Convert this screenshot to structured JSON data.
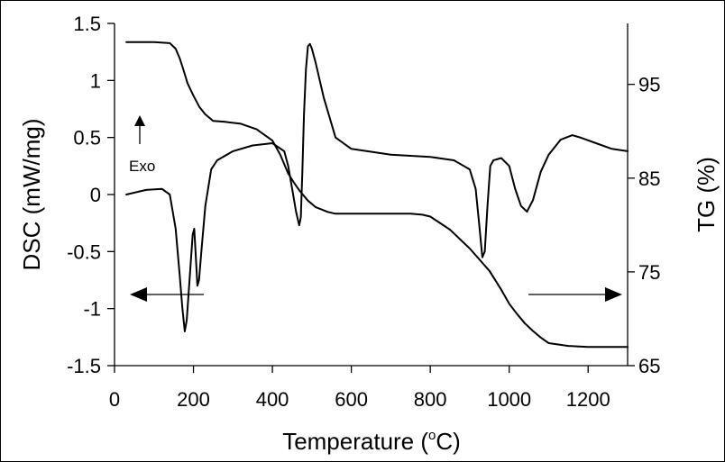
{
  "chart_data": {
    "type": "line",
    "title": "",
    "xlabel": {
      "prefix": "Temperature (",
      "sup": "o",
      "suffix": "C)"
    },
    "ylabel_left": "DSC (mW/mg)",
    "ylabel_right": "TG (%)",
    "xlim": [
      0,
      1300
    ],
    "ylim_left": [
      -1.5,
      1.5
    ],
    "ylim_right": [
      65,
      101.5
    ],
    "x_ticks": [
      0,
      200,
      400,
      600,
      800,
      1000,
      1200
    ],
    "y_left_ticks": [
      1.5,
      1,
      0.5,
      0,
      -0.5,
      -1,
      -1.5
    ],
    "y_right_ticks": [
      95,
      85,
      75,
      65
    ],
    "grid": false,
    "annotation": "Exo",
    "series": [
      {
        "axis": "left",
        "color": "#000000",
        "x": [
          30,
          80,
          120,
          140,
          155,
          165,
          172,
          178,
          183,
          188,
          193,
          198,
          202,
          206,
          210,
          214,
          220,
          230,
          245,
          260,
          300,
          350,
          400,
          430,
          440,
          450,
          460,
          468,
          472,
          476,
          480,
          485,
          490,
          495,
          500,
          510,
          530,
          560,
          600,
          700,
          800,
          860,
          900,
          915,
          925,
          932,
          938,
          945,
          952,
          960,
          980,
          1000,
          1015,
          1030,
          1045,
          1060,
          1080,
          1100,
          1130,
          1160,
          1180,
          1220,
          1260,
          1300
        ],
        "y": [
          0,
          0.04,
          0.05,
          0.0,
          -0.3,
          -0.7,
          -1.0,
          -1.2,
          -1.1,
          -0.85,
          -0.6,
          -0.35,
          -0.3,
          -0.55,
          -0.8,
          -0.75,
          -0.5,
          -0.1,
          0.22,
          0.3,
          0.38,
          0.43,
          0.45,
          0.38,
          0.25,
          0.05,
          -0.15,
          -0.27,
          -0.2,
          0.2,
          0.7,
          1.1,
          1.3,
          1.32,
          1.28,
          1.15,
          0.85,
          0.5,
          0.4,
          0.35,
          0.33,
          0.3,
          0.22,
          0.05,
          -0.3,
          -0.55,
          -0.5,
          -0.1,
          0.25,
          0.3,
          0.32,
          0.25,
          0.05,
          -0.1,
          -0.15,
          -0.05,
          0.2,
          0.35,
          0.48,
          0.52,
          0.5,
          0.45,
          0.4,
          0.38
        ]
      },
      {
        "axis": "right",
        "color": "#000000",
        "x": [
          30,
          100,
          140,
          155,
          165,
          175,
          185,
          200,
          215,
          230,
          250,
          280,
          320,
          360,
          400,
          420,
          440,
          455,
          470,
          490,
          510,
          540,
          560,
          580,
          600,
          650,
          700,
          750,
          780,
          800,
          850,
          900,
          950,
          980,
          1000,
          1020,
          1040,
          1060,
          1080,
          1090,
          1100,
          1150,
          1200,
          1250,
          1300
        ],
        "y": [
          99.5,
          99.5,
          99.4,
          98.8,
          97.8,
          96.5,
          95.1,
          93.8,
          92.6,
          91.8,
          91.1,
          91.0,
          90.8,
          90.2,
          89.0,
          87.5,
          85.5,
          84.5,
          83.6,
          82.6,
          81.9,
          81.4,
          81.2,
          81.2,
          81.2,
          81.2,
          81.2,
          81.2,
          81.1,
          80.9,
          79.5,
          77.5,
          75.1,
          73.1,
          71.6,
          70.5,
          69.5,
          68.7,
          68.0,
          67.7,
          67.4,
          67.1,
          67.0,
          67.0,
          67.0
        ]
      }
    ]
  }
}
